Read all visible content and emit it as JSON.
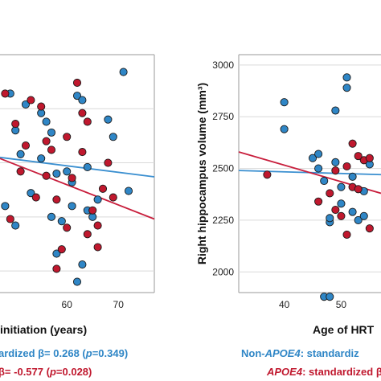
{
  "colors": {
    "non_apoe4": "#2f86c6",
    "apoe4": "#c0182e",
    "non_apoe4_line": "#3a8fd0",
    "apoe4_line": "#c81e3c"
  },
  "chart_data": [
    {
      "type": "scatter",
      "xlabel": "initiation (years)",
      "ylabel": "",
      "xticks": [
        60,
        70
      ],
      "xlim": [
        47,
        77
      ],
      "ylim": [
        1900,
        3000
      ],
      "series": [
        {
          "group": "non_apoe4",
          "points": [
            [
              49,
              2820
            ],
            [
              51,
              2540
            ],
            [
              52,
              2770
            ],
            [
              55,
              2730
            ],
            [
              56,
              2690
            ],
            [
              57,
              2640
            ],
            [
              58,
              2450
            ],
            [
              59,
              2230
            ],
            [
              60,
              2460
            ],
            [
              61,
              2410
            ],
            [
              62,
              2810
            ],
            [
              63,
              2790
            ],
            [
              64,
              2280
            ],
            [
              65,
              2250
            ],
            [
              68,
              2700
            ],
            [
              69,
              2620
            ],
            [
              71,
              2920
            ],
            [
              72,
              2370
            ],
            [
              63,
              2030
            ],
            [
              48,
              2300
            ],
            [
              50,
              2650
            ],
            [
              58,
              2080
            ],
            [
              61,
              2300
            ],
            [
              64,
              2480
            ],
            [
              55,
              2520
            ],
            [
              62,
              1950
            ],
            [
              50,
              2210
            ],
            [
              66,
              2330
            ],
            [
              53,
              2360
            ],
            [
              57,
              2250
            ]
          ],
          "trend": [
            [
              47,
              2525
            ],
            [
              77,
              2435
            ]
          ]
        },
        {
          "group": "apoe4",
          "points": [
            [
              48,
              2820
            ],
            [
              50,
              2680
            ],
            [
              53,
              2790
            ],
            [
              55,
              2760
            ],
            [
              56,
              2440
            ],
            [
              57,
              2560
            ],
            [
              58,
              2330
            ],
            [
              59,
              2100
            ],
            [
              60,
              2620
            ],
            [
              62,
              2870
            ],
            [
              63,
              2550
            ],
            [
              64,
              2690
            ],
            [
              65,
              2280
            ],
            [
              66,
              2210
            ],
            [
              67,
              2380
            ],
            [
              68,
              2500
            ],
            [
              69,
              2340
            ],
            [
              49,
              2240
            ],
            [
              51,
              2460
            ],
            [
              52,
              2580
            ],
            [
              54,
              2340
            ],
            [
              58,
              2010
            ],
            [
              61,
              2430
            ],
            [
              64,
              2170
            ],
            [
              60,
              2200
            ],
            [
              66,
              2110
            ],
            [
              63,
              2730
            ],
            [
              56,
              2600
            ]
          ],
          "trend": [
            [
              47,
              2520
            ],
            [
              77,
              2240
            ]
          ]
        }
      ]
    },
    {
      "type": "scatter",
      "xlabel": "Age of HRT",
      "ylabel": "Right hippocampus volume (mm³)",
      "xticks": [
        40,
        50
      ],
      "yticks": [
        2000,
        2250,
        2500,
        2750,
        3000
      ],
      "xlim": [
        32,
        57
      ],
      "ylim": [
        1900,
        3050
      ],
      "series": [
        {
          "group": "non_apoe4",
          "points": [
            [
              40,
              2820
            ],
            [
              40,
              2690
            ],
            [
              45,
              2550
            ],
            [
              46,
              2570
            ],
            [
              46,
              2500
            ],
            [
              47,
              2440
            ],
            [
              48,
              2240
            ],
            [
              48,
              2260
            ],
            [
              49,
              2780
            ],
            [
              49,
              2530
            ],
            [
              51,
              2890
            ],
            [
              51,
              2940
            ],
            [
              52,
              2290
            ],
            [
              53,
              2250
            ],
            [
              54,
              2270
            ],
            [
              54,
              2390
            ],
            [
              55,
              2520
            ],
            [
              47,
              1880
            ],
            [
              48,
              1880
            ],
            [
              50,
              2330
            ],
            [
              50,
              2410
            ],
            [
              52,
              2460
            ]
          ],
          "trend": [
            [
              32,
              2490
            ],
            [
              57,
              2470
            ]
          ]
        },
        {
          "group": "apoe4",
          "points": [
            [
              37,
              2470
            ],
            [
              46,
              2340
            ],
            [
              48,
              2380
            ],
            [
              49,
              2300
            ],
            [
              50,
              2270
            ],
            [
              51,
              2510
            ],
            [
              52,
              2620
            ],
            [
              52,
              2410
            ],
            [
              53,
              2400
            ],
            [
              54,
              2540
            ],
            [
              55,
              2550
            ],
            [
              49,
              2490
            ],
            [
              51,
              2180
            ],
            [
              53,
              2560
            ],
            [
              55,
              2210
            ]
          ],
          "trend": [
            [
              32,
              2580
            ],
            [
              57,
              2380
            ]
          ]
        }
      ]
    }
  ],
  "legend_lines": {
    "left_line1_head": "ardized β= 0.268 (",
    "left_line1_p": "p",
    "left_line1_tail": "=0.349)",
    "left_line2_head": "β= -0.577 (",
    "left_line2_p": "p",
    "left_line2_tail": "=0.028)",
    "right_line1_head": "Non-",
    "right_line1_gene": "APOE4",
    "right_line1_tail": ": standardiz",
    "right_line2_gene": "APOE4",
    "right_line2_tail": ": standardized β-"
  }
}
